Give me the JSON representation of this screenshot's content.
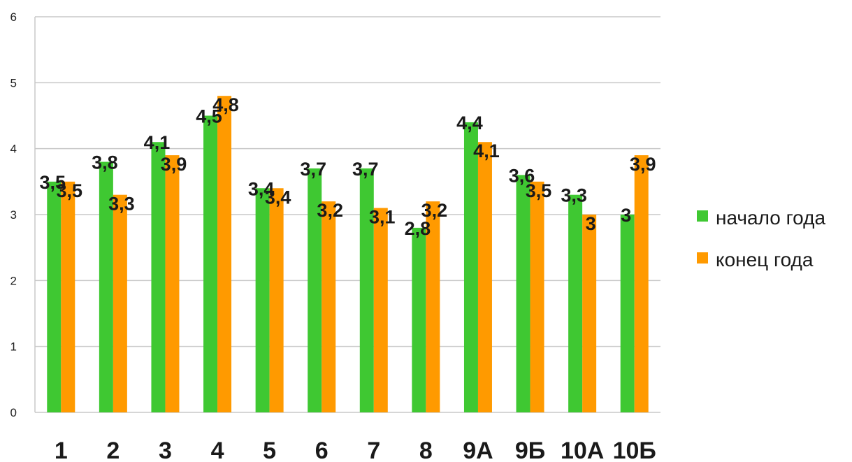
{
  "chart_data": {
    "type": "bar",
    "categories": [
      "1",
      "2",
      "3",
      "4",
      "5",
      "6",
      "7",
      "8",
      "9А",
      "9Б",
      "10А",
      "10Б"
    ],
    "series": [
      {
        "name": "начало года",
        "color": "#3fc832",
        "values": [
          3.5,
          3.8,
          4.1,
          4.5,
          3.4,
          3.7,
          3.7,
          2.8,
          4.4,
          3.6,
          3.3,
          3
        ],
        "labels": [
          "3,5",
          "3,8",
          "4,1",
          "4,5",
          "3,4",
          "3,7",
          "3,7",
          "2,8",
          "4,4",
          "3,6",
          "3,3",
          "3"
        ]
      },
      {
        "name": "конец года",
        "color": "#ff9a00",
        "values": [
          3.5,
          3.3,
          3.9,
          4.8,
          3.4,
          3.2,
          3.1,
          3.2,
          4.1,
          3.5,
          3,
          3.9
        ],
        "labels": [
          "3,5",
          "3,3",
          "3,9",
          "4,8",
          "3,4",
          "3,2",
          "3,1",
          "3,2",
          "4,1",
          "3,5",
          "3",
          "3,9"
        ]
      }
    ],
    "ylim": [
      0,
      6
    ],
    "yticks": [
      "0",
      "1",
      "2",
      "3",
      "4",
      "5",
      "6"
    ],
    "grid": true,
    "legend": "right"
  }
}
